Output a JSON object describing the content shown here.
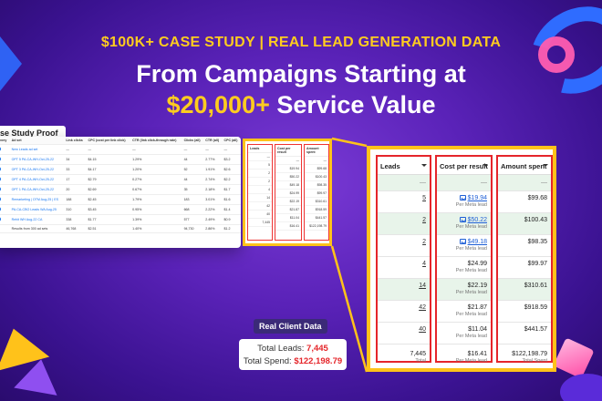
{
  "header": {
    "top_line": "$100K+ CASE STUDY | REAL LEAD GENERATION DATA",
    "headline_line1": "From Campaigns Starting at",
    "headline_accent": "$20,000+",
    "headline_rest": " Service Value"
  },
  "case_study": {
    "tab_label": "se Study Proof",
    "columns": [
      "elivery",
      "Ad set",
      "Link clicks",
      "CPC (cost per link click)",
      "CTR (link click-through rate)",
      "Clicks (all)",
      "CTR (all)",
      "CPC (all)"
    ],
    "rows": [
      {
        "name": "New Leads ad set",
        "values": [
          "—",
          "—",
          "—",
          "—",
          "—",
          "—"
        ]
      },
      {
        "name": "OPT 5 PA-CA-WH-Oct-25-22",
        "values": [
          "34",
          "$4.15",
          "1.29%",
          "44",
          "2.77%",
          "$3.2"
        ]
      },
      {
        "name": "OPT 3 PA-CA-WH-Oct-25-22",
        "values": [
          "33",
          "$4.17",
          "1.20%",
          "52",
          "1.91%",
          "$2.6"
        ]
      },
      {
        "name": "OPT 4 PA-CA-WH-Oct-25-22",
        "values": [
          "17",
          "$2.79",
          "0.27%",
          "44",
          "2.74%",
          "$2.2"
        ]
      },
      {
        "name": "OPT 1 PA-CA-WH-Oct-25-22",
        "values": [
          "20",
          "$2.69",
          "0.67%",
          "35",
          "2.18%",
          "$1.7"
        ]
      },
      {
        "name": "Remarketing | OTM Aug-25 | ES",
        "values": [
          "188",
          "$2.45",
          "1.79%",
          "183",
          "3.01%",
          "$1.6"
        ]
      },
      {
        "name": "PA-CA-CBO Leads WA Aug-25",
        "values": [
          "310",
          "$3.45",
          "0.95%",
          "668",
          "2.22%",
          "$1.4"
        ]
      },
      {
        "name": "Rehit WH Aug-22 CA",
        "values": [
          "338",
          "$1.77",
          "1.39%",
          "577",
          "2.49%",
          "$0.9"
        ]
      }
    ],
    "results_label": "Results from 300 ad sets",
    "results_values": [
      "46,768",
      "$2.51",
      "1.40%",
      "94,730",
      "2.86%",
      "$1.2"
    ]
  },
  "mini_box": {
    "leads_header": "Leads",
    "cost_header": "Cost per result",
    "amount_header": "Amount spent",
    "leads": [
      "—",
      "5",
      "2",
      "2",
      "4",
      "14",
      "42",
      "40",
      "7,445"
    ],
    "cost": [
      "—",
      "$19.94",
      "$50.22",
      "$49.18",
      "$24.99",
      "$22.19",
      "$21.87",
      "$11.04",
      "$16.41"
    ],
    "amount": [
      "—",
      "$99.68",
      "$100.43",
      "$98.35",
      "$99.97",
      "$310.61",
      "$918.59",
      "$441.57",
      "$122,198.79"
    ]
  },
  "zoom_panel": {
    "leads_header": "Leads",
    "cost_header": "Cost per result",
    "amount_header": "Amount spent",
    "dash": "—",
    "per_meta_lead": "Per Meta lead",
    "rows": [
      {
        "leads": "5",
        "cost": "$19.94",
        "amount": "$99.68",
        "linked": true
      },
      {
        "leads": "2",
        "cost": "$50.22",
        "amount": "$100.43",
        "linked": true
      },
      {
        "leads": "2",
        "cost": "$49.18",
        "amount": "$98.35",
        "linked": true
      },
      {
        "leads": "4",
        "cost": "$24.99",
        "amount": "$99.97",
        "linked": false
      },
      {
        "leads": "14",
        "cost": "$22.19",
        "amount": "$310.61",
        "linked": false
      },
      {
        "leads": "42",
        "cost": "$21.87",
        "amount": "$918.59",
        "linked": false
      },
      {
        "leads": "40",
        "cost": "$11.04",
        "amount": "$441.57",
        "linked": false
      }
    ],
    "total": {
      "leads": "7,445",
      "leads_sub": "Total",
      "cost": "$16.41",
      "cost_sub": "Per Meta lead",
      "amount": "$122,198.79",
      "amount_sub": "Total Spent"
    }
  },
  "client_data": {
    "label": "Real Client Data",
    "leads_label": "Total Leads: ",
    "leads_value": "7,445",
    "spend_label": "Total Spend: ",
    "spend_value": "$122,198.79"
  },
  "colors": {
    "accent_yellow": "#ffcc1f",
    "highlight_red": "#e5252a",
    "link_blue": "#1e5fd6",
    "row_green": "#e8f4ea"
  }
}
